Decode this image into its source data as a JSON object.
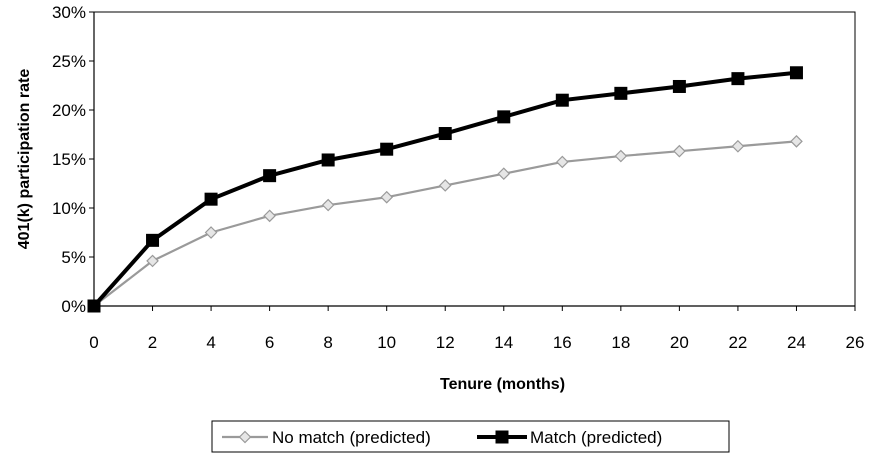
{
  "chart_data": {
    "type": "line",
    "title": "",
    "xlabel": "Tenure (months)",
    "ylabel": "401(k) participation rate",
    "xlim": [
      0,
      26
    ],
    "ylim": [
      0,
      30
    ],
    "x_ticks": [
      "0",
      "2",
      "4",
      "6",
      "8",
      "10",
      "12",
      "14",
      "16",
      "18",
      "20",
      "22",
      "24",
      "26"
    ],
    "y_ticks": [
      "0%",
      "5%",
      "10%",
      "15%",
      "20%",
      "25%",
      "30%"
    ],
    "y_unit": "%",
    "grid": false,
    "legend_position": "bottom",
    "series": [
      {
        "name": "No match (predicted)",
        "color": "#9a9a9a",
        "marker": "diamond",
        "x": [
          0,
          2,
          4,
          6,
          8,
          10,
          12,
          14,
          16,
          18,
          20,
          22,
          24
        ],
        "values": [
          0,
          4.6,
          7.5,
          9.2,
          10.3,
          11.1,
          12.3,
          13.5,
          14.7,
          15.3,
          15.8,
          16.3,
          16.8
        ]
      },
      {
        "name": "Match (predicted)",
        "color": "#000000",
        "marker": "square",
        "x": [
          0,
          2,
          4,
          6,
          8,
          10,
          12,
          14,
          16,
          18,
          20,
          22,
          24
        ],
        "values": [
          0,
          6.7,
          10.9,
          13.3,
          14.9,
          16.0,
          17.6,
          19.3,
          21.0,
          21.7,
          22.4,
          23.2,
          23.8
        ]
      }
    ]
  }
}
